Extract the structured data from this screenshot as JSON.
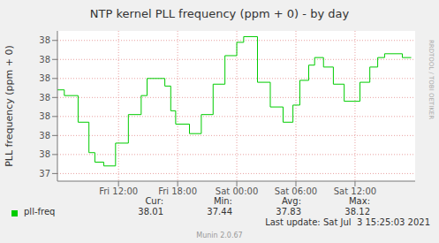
{
  "chart_data": {
    "type": "line",
    "title": "NTP kernel PLL frequency (ppm + 0) - by day",
    "y_label": "PLL frequency (ppm + 0)",
    "x": [
      5.8,
      6.5,
      7.9,
      9.0,
      9.6,
      10.5,
      11.7,
      13.0,
      14.3,
      14.9,
      16.7,
      17.3,
      17.8,
      19.2,
      20.4,
      21.6,
      22.8,
      24.0,
      24.7,
      26.1,
      27.4,
      28.7,
      29.7,
      30.4,
      31.3,
      31.9,
      32.8,
      33.8,
      34.9,
      36.5,
      37.5,
      38.3,
      39.0,
      40.8,
      41.7
    ],
    "series": [
      {
        "name": "pll-freq",
        "color": "#00cc00",
        "line_style": "step",
        "values": [
          37.84,
          37.81,
          37.67,
          37.51,
          37.46,
          37.44,
          37.56,
          37.71,
          37.81,
          37.9,
          37.86,
          37.73,
          37.66,
          37.61,
          37.71,
          37.87,
          38.02,
          38.09,
          38.12,
          37.88,
          37.75,
          37.67,
          37.76,
          37.89,
          37.97,
          38.01,
          37.96,
          37.87,
          37.78,
          37.88,
          37.96,
          38.01,
          38.03,
          38.01,
          38.01
        ],
        "stats": [
          38.01,
          37.44,
          37.83,
          38.12
        ]
      }
    ],
    "stats_labels": [
      "Cur:",
      "Min:",
      "Avg:",
      "Max:"
    ],
    "xlim": [
      5.8,
      42.1
    ],
    "xticks": [
      {
        "value": 12,
        "label": "Fri 12:00"
      },
      {
        "value": 18,
        "label": "Fri 18:00"
      },
      {
        "value": 24,
        "label": "Sat 00:00"
      },
      {
        "value": 30,
        "label": "Sat 06:00"
      },
      {
        "value": 36,
        "label": "Sat 12:00"
      }
    ],
    "ylim": [
      37.36,
      38.15
    ],
    "yticks": [
      {
        "value": 37.4,
        "label": "37"
      },
      {
        "value": 37.5,
        "label": "38"
      },
      {
        "value": 37.6,
        "label": "38"
      },
      {
        "value": 37.7,
        "label": "38"
      },
      {
        "value": 37.8,
        "label": "38"
      },
      {
        "value": 37.9,
        "label": "38"
      },
      {
        "value": 38.0,
        "label": "38"
      },
      {
        "value": 38.1,
        "label": "38"
      }
    ],
    "grid": true,
    "footer": "Last update: Sat Jul  3 15:25:03 2021",
    "credit": "Munin 2.0.67",
    "watermark": "RRDTOOL / TOBI OETIKER"
  }
}
